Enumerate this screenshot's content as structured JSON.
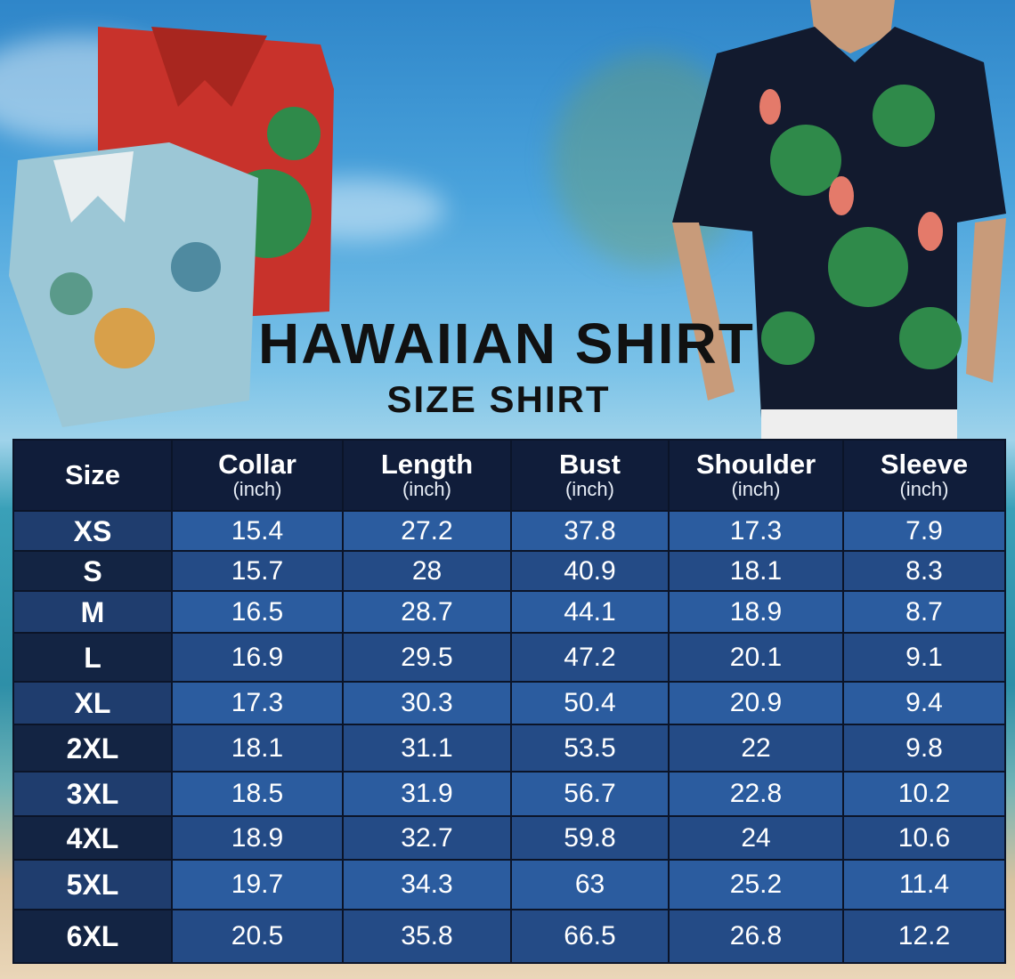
{
  "title": "HAWAIIAN SHIRT",
  "subtitle": "SIZE SHIRT",
  "colors": {
    "header_bg": "#101d3a",
    "row_light": "#2b5c9f",
    "row_dark": "#244b86",
    "size_col_dark": "#132443"
  },
  "table": {
    "columns": [
      {
        "label": "Size",
        "unit": ""
      },
      {
        "label": "Collar",
        "unit": "(inch)"
      },
      {
        "label": "Length",
        "unit": "(inch)"
      },
      {
        "label": "Bust",
        "unit": "(inch)"
      },
      {
        "label": "Shoulder",
        "unit": "(inch)"
      },
      {
        "label": "Sleeve",
        "unit": "(inch)"
      }
    ],
    "rows": [
      [
        "XS",
        "15.4",
        "27.2",
        "37.8",
        "17.3",
        "7.9"
      ],
      [
        "S",
        "15.7",
        "28",
        "40.9",
        "18.1",
        "8.3"
      ],
      [
        "M",
        "16.5",
        "28.7",
        "44.1",
        "18.9",
        "8.7"
      ],
      [
        "L",
        "16.9",
        "29.5",
        "47.2",
        "20.1",
        "9.1"
      ],
      [
        "XL",
        "17.3",
        "30.3",
        "50.4",
        "20.9",
        "9.4"
      ],
      [
        "2XL",
        "18.1",
        "31.1",
        "53.5",
        "22",
        "9.8"
      ],
      [
        "3XL",
        "18.5",
        "31.9",
        "56.7",
        "22.8",
        "10.2"
      ],
      [
        "4XL",
        "18.9",
        "32.7",
        "59.8",
        "24",
        "10.6"
      ],
      [
        "5XL",
        "19.7",
        "34.3",
        "63",
        "25.2",
        "11.4"
      ],
      [
        "6XL",
        "20.5",
        "35.8",
        "66.5",
        "26.8",
        "12.2"
      ]
    ]
  }
}
